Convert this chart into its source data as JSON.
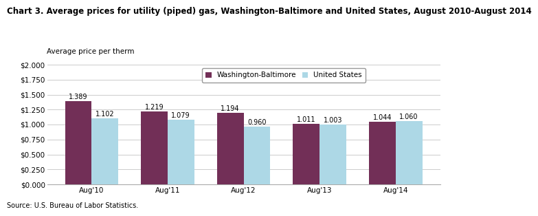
{
  "title": "Chart 3. Average prices for utility (piped) gas, Washington-Baltimore and United States, August 2010-August 2014",
  "ylabel": "Average price per therm",
  "source": "Source: U.S. Bureau of Labor Statistics.",
  "categories": [
    "Aug'10",
    "Aug'11",
    "Aug'12",
    "Aug'13",
    "Aug'14"
  ],
  "washington_baltimore": [
    1.389,
    1.219,
    1.194,
    1.011,
    1.044
  ],
  "united_states": [
    1.102,
    1.079,
    0.96,
    1.003,
    1.06
  ],
  "wb_color": "#722F57",
  "us_color": "#ADD8E6",
  "wb_label": "Washington-Baltimore",
  "us_label": "United States",
  "ylim": [
    0,
    2.0
  ],
  "yticks": [
    0.0,
    0.25,
    0.5,
    0.75,
    1.0,
    1.25,
    1.5,
    1.75,
    2.0
  ],
  "bar_width": 0.35,
  "title_fontsize": 8.5,
  "ylabel_fontsize": 7.5,
  "tick_fontsize": 7.5,
  "bar_label_fontsize": 7.0,
  "legend_fontsize": 7.5,
  "source_fontsize": 7.0
}
